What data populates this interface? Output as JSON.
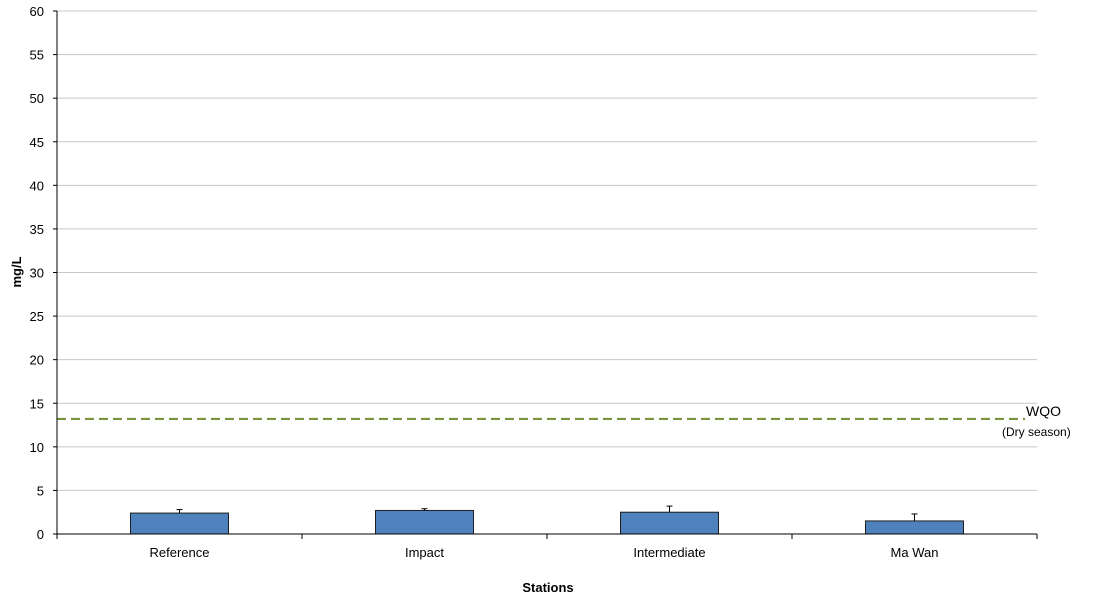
{
  "chart_data": {
    "type": "bar",
    "title": "",
    "xlabel": "Stations",
    "ylabel": "mg/L",
    "categories": [
      "Reference",
      "Impact",
      "Intermediate",
      "Ma Wan"
    ],
    "series": [
      {
        "values": [
          2.4,
          2.7,
          2.5,
          1.5
        ],
        "error_upper": [
          2.8,
          2.9,
          3.2,
          2.3
        ],
        "color": "#4f81bd"
      }
    ],
    "ylim": [
      0,
      60
    ],
    "yticks": [
      "0",
      "5",
      "10",
      "15",
      "20",
      "25",
      "30",
      "35",
      "40",
      "45",
      "50",
      "55",
      "60"
    ],
    "grid": true,
    "reference_line": {
      "value": 13.2,
      "label": "WQO",
      "sublabel": "(Dry season)",
      "color": "#77933c",
      "style": "dashed"
    }
  }
}
